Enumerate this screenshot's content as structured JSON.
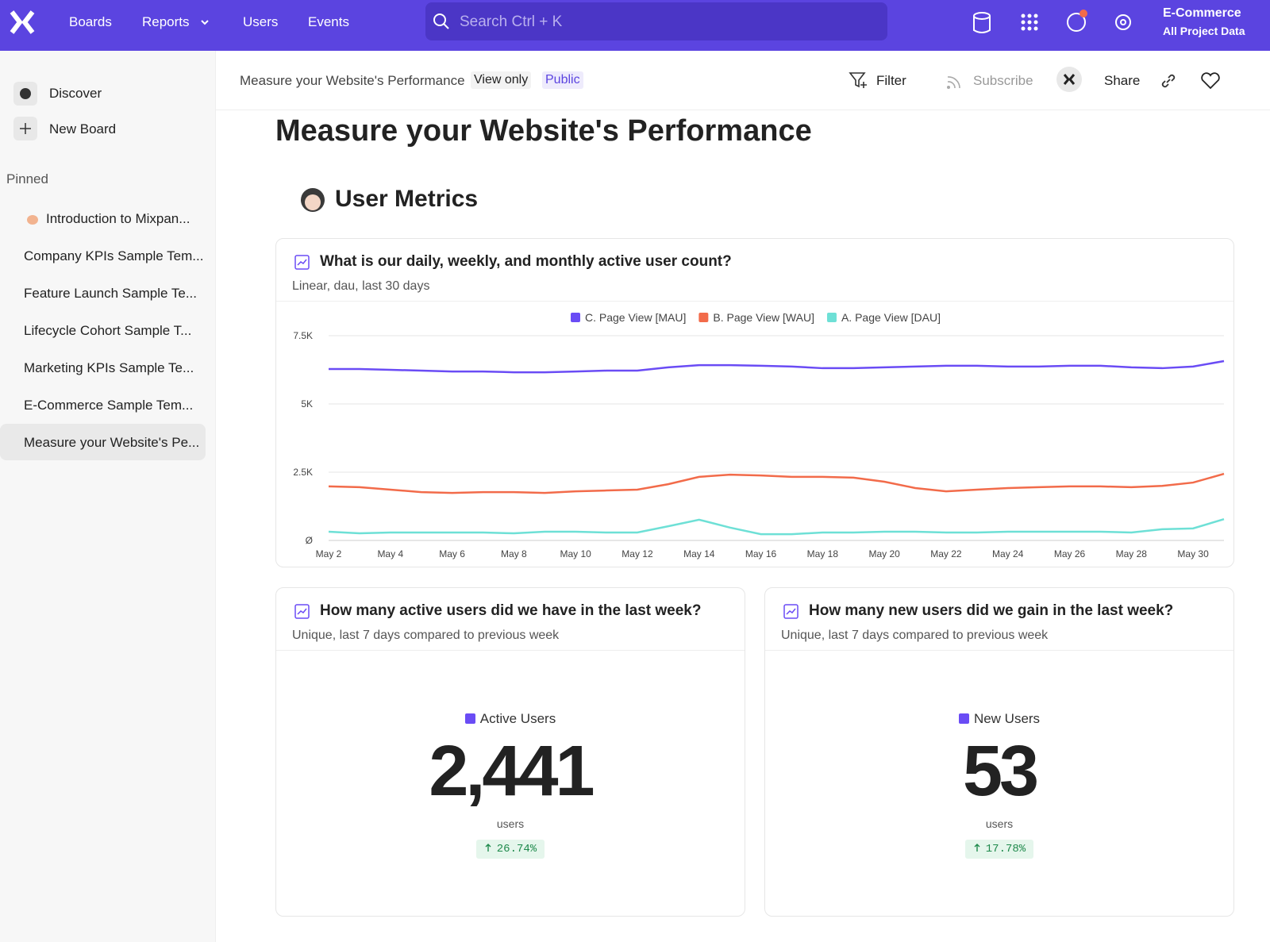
{
  "nav": {
    "items": [
      "Boards",
      "Reports",
      "Users",
      "Events"
    ],
    "search": "Search Ctrl + K",
    "project": "E-Commerce",
    "project_sub": "All Project Data"
  },
  "sidebar": {
    "actions": [
      "Discover",
      "New Board"
    ],
    "section": "Pinned",
    "boards": [
      "Introduction to Mixpan...",
      "Company KPIs Sample Tem...",
      "Feature Launch Sample Te...",
      "Lifecycle Cohort Sample T...",
      "Marketing KPIs Sample Te...",
      "E-Commerce Sample Tem...",
      "Measure your Website's Pe..."
    ],
    "active": 6
  },
  "header": {
    "breadcrumb": "Measure your Website's Performance",
    "badges": [
      "View only",
      "Public"
    ],
    "actions": [
      "Filter",
      "Subscribe",
      "Share"
    ]
  },
  "title": "Measure your Website's Performance",
  "section_title": "User Metrics",
  "chart_data": {
    "type": "line",
    "title": "What is our daily, weekly, and monthly active user count?",
    "subtitle": "Linear, dau, last 30 days",
    "categories": [
      "May 2",
      null,
      "May 4",
      null,
      "May 6",
      null,
      "May 8",
      null,
      "May 10",
      null,
      "May 12",
      null,
      "May 14",
      null,
      "May 16",
      null,
      "May 18",
      null,
      "May 20",
      null,
      "May 22",
      null,
      "May 24",
      null,
      "May 26",
      null,
      "May 28",
      null,
      "May 30",
      null
    ],
    "series": [
      {
        "name": "C. Page View [MAU]",
        "color": "#6a4cf5",
        "values": [
          6280,
          6280,
          6250,
          6220,
          6190,
          6190,
          6160,
          6160,
          6190,
          6220,
          6220,
          6340,
          6420,
          6420,
          6400,
          6370,
          6310,
          6310,
          6340,
          6370,
          6400,
          6400,
          6370,
          6370,
          6400,
          6400,
          6340,
          6310,
          6370,
          6570
        ]
      },
      {
        "name": "B. Page View [WAU]",
        "color": "#f26b4a",
        "values": [
          1980,
          1950,
          1860,
          1770,
          1740,
          1770,
          1770,
          1740,
          1800,
          1830,
          1860,
          2060,
          2330,
          2410,
          2380,
          2330,
          2330,
          2300,
          2150,
          1920,
          1800,
          1860,
          1920,
          1950,
          1980,
          1980,
          1950,
          2000,
          2120,
          2440
        ]
      },
      {
        "name": "A. Page View [DAU]",
        "color": "#6ee0d6",
        "values": [
          320,
          260,
          290,
          290,
          290,
          290,
          260,
          320,
          320,
          290,
          290,
          520,
          760,
          470,
          230,
          230,
          290,
          290,
          320,
          320,
          290,
          290,
          320,
          320,
          320,
          320,
          290,
          410,
          440,
          780
        ]
      }
    ],
    "ylim": [
      0,
      7500
    ],
    "yticks": [
      {
        "value": 0,
        "label": "Ø"
      },
      {
        "value": 2500,
        "label": "2.5K"
      },
      {
        "value": 5000,
        "label": "5K"
      },
      {
        "value": 7500,
        "label": "7.5K"
      }
    ],
    "grid": true
  },
  "metrics": [
    {
      "title": "How many active users did we have in the last week?",
      "subtitle": "Unique, last 7 days compared to previous week",
      "label": "Active Users",
      "color": "#6a4cf5",
      "value": "2,441",
      "unit": "users",
      "change": "26.74%"
    },
    {
      "title": "How many new users did we gain in the last week?",
      "subtitle": "Unique, last 7 days compared to previous week",
      "label": "New Users",
      "color": "#6a4cf5",
      "value": "53",
      "unit": "users",
      "change": "17.78%"
    }
  ]
}
